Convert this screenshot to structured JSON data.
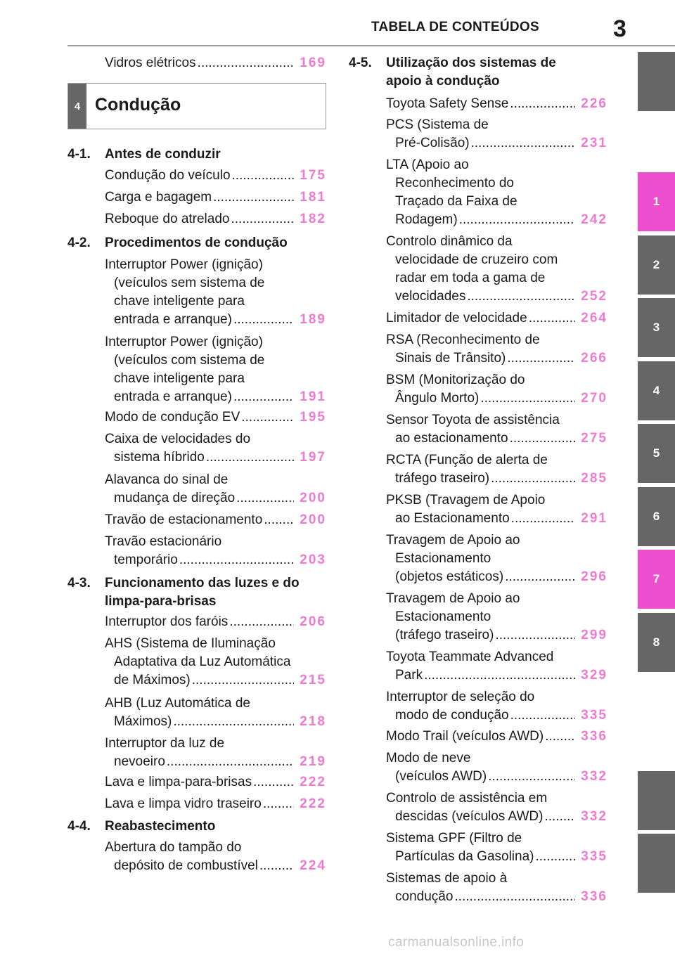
{
  "header": {
    "title": "TABELA DE CONTEÚDOS",
    "page_number": "3"
  },
  "side_tabs": [
    {
      "label": "",
      "color": "#666666"
    },
    {
      "label": "1",
      "color": "#ee4fcf"
    },
    {
      "label": "2",
      "color": "#666666"
    },
    {
      "label": "3",
      "color": "#666666"
    },
    {
      "label": "4",
      "color": "#666666"
    },
    {
      "label": "5",
      "color": "#666666"
    },
    {
      "label": "6",
      "color": "#666666"
    },
    {
      "label": "7",
      "color": "#ee4fcf"
    },
    {
      "label": "8",
      "color": "#666666"
    },
    {
      "label": "",
      "color": "#666666"
    },
    {
      "label": "",
      "color": "#666666"
    }
  ],
  "chapter": {
    "number": "4",
    "title": "Condução"
  },
  "left_column": {
    "top_entry": {
      "lines": [
        "Vidros elétricos"
      ],
      "page": "169"
    },
    "sections": [
      {
        "number": "4-1.",
        "title_lines": [
          "Antes de conduzir"
        ],
        "entries": [
          {
            "lines": [
              "Condução do veículo"
            ],
            "page": "175"
          },
          {
            "lines": [
              "Carga e bagagem"
            ],
            "page": "181"
          },
          {
            "lines": [
              "Reboque do atrelado"
            ],
            "page": "182"
          }
        ]
      },
      {
        "number": "4-2.",
        "title_lines": [
          "Procedimentos de condução"
        ],
        "entries": [
          {
            "lines": [
              "Interruptor Power (ignição)",
              "(veículos sem sistema de",
              "chave inteligente para",
              "entrada e arranque)"
            ],
            "page": "189"
          },
          {
            "lines": [
              "Interruptor Power (ignição)",
              "(veículos com sistema de",
              "chave inteligente para",
              "entrada e arranque)"
            ],
            "page": "191"
          },
          {
            "lines": [
              "Modo de condução EV"
            ],
            "page": "195"
          },
          {
            "lines": [
              "Caixa de velocidades do",
              "sistema híbrido"
            ],
            "page": "197"
          },
          {
            "lines": [
              "Alavanca do sinal de",
              "mudança de direção"
            ],
            "page": "200"
          },
          {
            "lines": [
              "Travão de estacionamento"
            ],
            "page": "200"
          },
          {
            "lines": [
              "Travão estacionário",
              "temporário"
            ],
            "page": "203"
          }
        ]
      },
      {
        "number": "4-3.",
        "title_lines": [
          "Funcionamento das luzes e do",
          "limpa-para-brisas"
        ],
        "entries": [
          {
            "lines": [
              "Interruptor dos faróis"
            ],
            "page": "206"
          },
          {
            "lines": [
              "AHS (Sistema de Iluminação",
              "Adaptativa da Luz Automática",
              "de Máximos)"
            ],
            "page": "215"
          },
          {
            "lines": [
              "AHB (Luz Automática de",
              "Máximos)"
            ],
            "page": "218"
          },
          {
            "lines": [
              "Interruptor da luz de",
              "nevoeiro"
            ],
            "page": "219"
          },
          {
            "lines": [
              "Lava e limpa-para-brisas"
            ],
            "page": "222"
          },
          {
            "lines": [
              "Lava e limpa vidro traseiro"
            ],
            "page": "222"
          }
        ]
      },
      {
        "number": "4-4.",
        "title_lines": [
          "Reabastecimento"
        ],
        "entries": [
          {
            "lines": [
              "Abertura do tampão do",
              "depósito de combustível"
            ],
            "page": "224"
          }
        ]
      }
    ]
  },
  "right_column": {
    "sections": [
      {
        "number": "4-5.",
        "title_lines": [
          "Utilização dos sistemas de",
          "apoio à condução"
        ],
        "entries": [
          {
            "lines": [
              "Toyota Safety Sense"
            ],
            "page": "226"
          },
          {
            "lines": [
              "PCS (Sistema de",
              "Pré-Colisão)"
            ],
            "page": "231"
          },
          {
            "lines": [
              "LTA (Apoio ao",
              "Reconhecimento do",
              "Traçado da Faixa de",
              "Rodagem)"
            ],
            "page": "242"
          },
          {
            "lines": [
              "Controlo dinâmico da",
              "velocidade de cruzeiro com",
              "radar em toda a gama de",
              "velocidades"
            ],
            "page": "252"
          },
          {
            "lines": [
              "Limitador de velocidade"
            ],
            "page": "264"
          },
          {
            "lines": [
              "RSA (Reconhecimento de",
              "Sinais de Trânsito)"
            ],
            "page": "266"
          },
          {
            "lines": [
              "BSM (Monitorização do",
              "Ângulo Morto)"
            ],
            "page": "270"
          },
          {
            "lines": [
              "Sensor Toyota de assistência",
              "ao estacionamento"
            ],
            "page": "275"
          },
          {
            "lines": [
              "RCTA (Função de alerta de",
              "tráfego traseiro)"
            ],
            "page": "285"
          },
          {
            "lines": [
              "PKSB (Travagem de Apoio",
              "ao Estacionamento"
            ],
            "page": "291"
          },
          {
            "lines": [
              "Travagem de Apoio ao",
              "Estacionamento",
              "(objetos estáticos)"
            ],
            "page": "296"
          },
          {
            "lines": [
              "Travagem de Apoio ao",
              "Estacionamento",
              "(tráfego traseiro)"
            ],
            "page": "299"
          },
          {
            "lines": [
              "Toyota Teammate Advanced",
              "Park"
            ],
            "page": "329"
          },
          {
            "lines": [
              "Interruptor de seleção do",
              "modo de condução"
            ],
            "page": "335"
          },
          {
            "lines": [
              "Modo Trail (veículos AWD)"
            ],
            "page": "336"
          },
          {
            "lines": [
              "Modo de neve",
              "(veículos AWD)"
            ],
            "page": "332"
          },
          {
            "lines": [
              "Controlo de assistência em",
              "descidas (veículos AWD)"
            ],
            "page": "332"
          },
          {
            "lines": [
              "Sistema GPF (Filtro de",
              "Partículas da Gasolina)"
            ],
            "page": "335"
          },
          {
            "lines": [
              "Sistemas de apoio à",
              "condução"
            ],
            "page": "336"
          }
        ]
      }
    ]
  },
  "watermark": "carmanualsonline.info",
  "colors": {
    "page_link": "#ee7bd0",
    "tab_active": "#ee4fcf",
    "tab_inactive": "#666666",
    "chapter_box": "#666666"
  }
}
